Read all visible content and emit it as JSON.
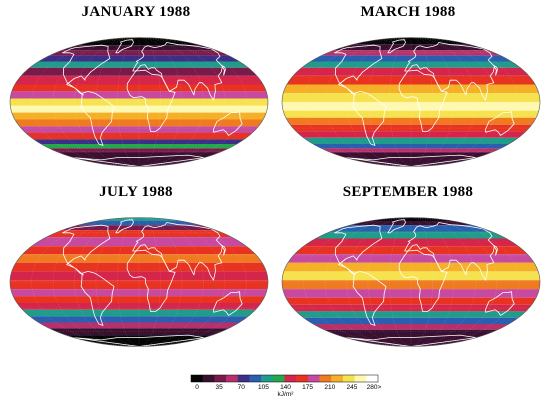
{
  "maps": [
    {
      "title": "JANUARY 1988",
      "pattern": "jan"
    },
    {
      "title": "MARCH 1988",
      "pattern": "mar"
    },
    {
      "title": "JULY 1988",
      "pattern": "jul"
    },
    {
      "title": "SEPTEMBER 1988",
      "pattern": "sep"
    }
  ],
  "legend": {
    "unit": "kJ/m²",
    "ticks": [
      "0",
      "35",
      "70",
      "105",
      "140",
      "175",
      "210",
      "245",
      "280>"
    ],
    "colors": [
      "#050505",
      "#3a1030",
      "#7a1a4a",
      "#b8306b",
      "#3c2f8a",
      "#2a5fb0",
      "#1f9c8a",
      "#24a84a",
      "#d4264a",
      "#e83322",
      "#c74aa0",
      "#f07a20",
      "#f5b027",
      "#f6e24e",
      "#fff8b0",
      "#ffffff"
    ]
  }
}
